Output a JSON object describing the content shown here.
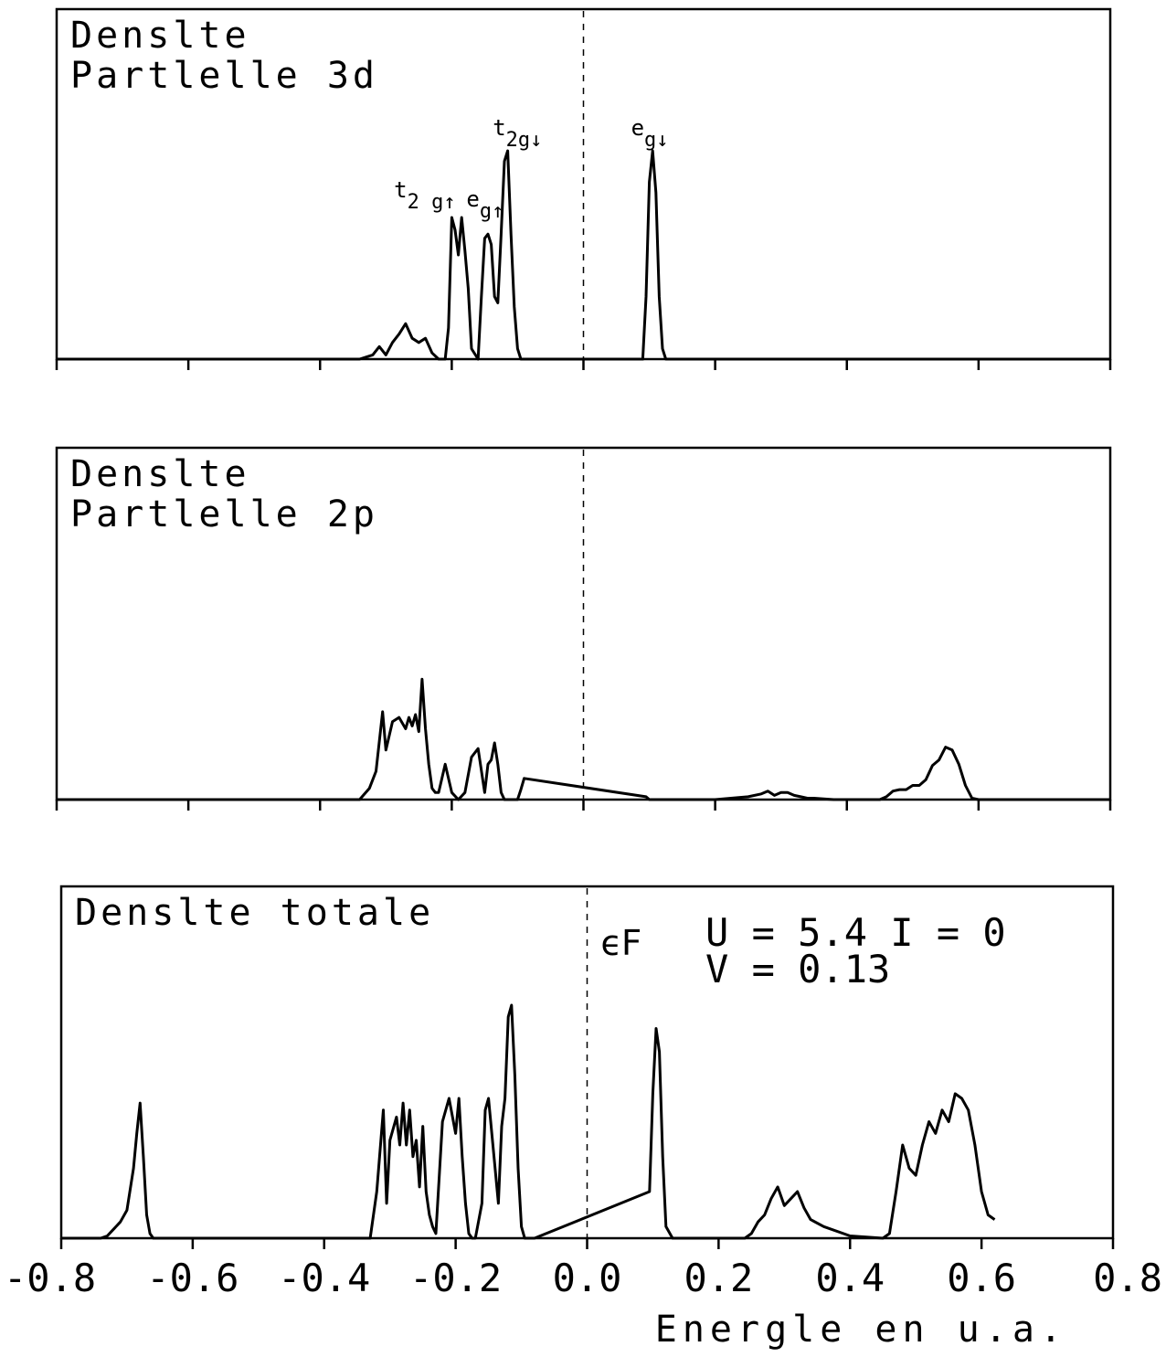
{
  "chart_data": [
    {
      "type": "line",
      "title_lines": [
        "Denslte",
        "Partlelle 3d"
      ],
      "xlim": [
        -0.8,
        0.8
      ],
      "fermi_level": 0.0,
      "annotations": [
        {
          "base": "t",
          "sub": "2 g",
          "arrow": "↑",
          "x": -0.26
        },
        {
          "base": "e",
          "sub": "g",
          "arrow": "↑",
          "x": -0.15
        },
        {
          "base": "t",
          "sub": "2g",
          "arrow": "↓",
          "x": -0.11
        },
        {
          "base": "e",
          "sub": "g",
          "arrow": "↓",
          "x": 0.1
        }
      ],
      "series": [
        {
          "x": [
            -0.8,
            -0.34,
            -0.32,
            -0.31,
            -0.3,
            -0.29,
            -0.28,
            -0.27,
            -0.26,
            -0.25,
            -0.24,
            -0.23,
            -0.22,
            -0.21,
            -0.205,
            -0.2,
            -0.195,
            -0.19,
            -0.185,
            -0.18,
            -0.175,
            -0.17,
            -0.16,
            -0.155,
            -0.15,
            -0.145,
            -0.14,
            -0.135,
            -0.13,
            -0.125,
            -0.12,
            -0.115,
            -0.11,
            -0.105,
            -0.1,
            -0.095,
            -0.09,
            -0.08,
            0.09,
            0.095,
            0.1,
            0.105,
            0.11,
            0.115,
            0.12,
            0.125,
            0.8
          ],
          "y": [
            0,
            0,
            0.02,
            0.06,
            0.02,
            0.08,
            0.12,
            0.17,
            0.1,
            0.08,
            0.1,
            0.03,
            0,
            0,
            0.15,
            0.68,
            0.62,
            0.5,
            0.68,
            0.52,
            0.34,
            0.05,
            0,
            0.3,
            0.58,
            0.6,
            0.55,
            0.3,
            0.27,
            0.6,
            0.95,
            1.0,
            0.6,
            0.25,
            0.05,
            0,
            0,
            0,
            0,
            0.3,
            0.85,
            1.0,
            0.8,
            0.3,
            0.05,
            0,
            0
          ]
        }
      ]
    },
    {
      "type": "line",
      "title_lines": [
        "Denslte",
        "Partlelle 2p"
      ],
      "xlim": [
        -0.8,
        0.8
      ],
      "fermi_level": 0.0,
      "series": [
        {
          "x": [
            -0.8,
            -0.34,
            -0.325,
            -0.315,
            -0.305,
            -0.3,
            -0.29,
            -0.28,
            -0.27,
            -0.265,
            -0.26,
            -0.255,
            -0.25,
            -0.245,
            -0.24,
            -0.235,
            -0.23,
            -0.225,
            -0.22,
            -0.21,
            -0.2,
            -0.19,
            -0.18,
            -0.17,
            -0.16,
            -0.15,
            -0.145,
            -0.14,
            -0.135,
            -0.13,
            -0.125,
            -0.12,
            -0.115,
            -0.11,
            -0.1,
            -0.095,
            -0.09,
            0.095,
            0.1,
            0.105,
            0.11,
            0.12,
            0.2,
            0.25,
            0.27,
            0.28,
            0.29,
            0.3,
            0.31,
            0.32,
            0.33,
            0.34,
            0.35,
            0.38,
            0.42,
            0.45,
            0.46,
            0.47,
            0.48,
            0.49,
            0.5,
            0.51,
            0.52,
            0.53,
            0.54,
            0.55,
            0.56,
            0.57,
            0.58,
            0.59,
            0.6,
            0.62,
            0.8
          ],
          "y": [
            0,
            0,
            0.08,
            0.2,
            0.62,
            0.35,
            0.55,
            0.58,
            0.5,
            0.58,
            0.52,
            0.6,
            0.48,
            0.85,
            0.5,
            0.25,
            0.08,
            0.05,
            0.05,
            0.25,
            0.05,
            0,
            0.05,
            0.3,
            0.36,
            0.05,
            0.25,
            0.28,
            0.4,
            0.25,
            0.05,
            0,
            0,
            0,
            0,
            0.07,
            0.15,
            0.02,
            0,
            0,
            0,
            0,
            0,
            0.02,
            0.04,
            0.06,
            0.03,
            0.05,
            0.05,
            0.03,
            0.02,
            0.01,
            0.01,
            0,
            0,
            0,
            0.02,
            0.06,
            0.07,
            0.07,
            0.1,
            0.1,
            0.14,
            0.24,
            0.28,
            0.37,
            0.35,
            0.25,
            0.1,
            0.01,
            0,
            0,
            0
          ]
        }
      ]
    },
    {
      "type": "line",
      "title_lines": [
        "Denslte totale"
      ],
      "xlim": [
        -0.8,
        0.8
      ],
      "xticks": [
        "-0.8",
        "-0.6",
        "-0.4",
        "-0.2",
        "0.0",
        "0.2",
        "0.4",
        "0.6",
        "0.8"
      ],
      "xlabel": "Energle en u.a.",
      "fermi_level": 0.0,
      "fermi_label": "ϵF",
      "params": {
        "line1": "U = 5.4  I = 0",
        "line2": "V = 0.13"
      },
      "series": [
        {
          "x": [
            -0.8,
            -0.74,
            -0.73,
            -0.72,
            -0.71,
            -0.7,
            -0.69,
            -0.685,
            -0.68,
            -0.675,
            -0.67,
            -0.665,
            -0.66,
            -0.33,
            -0.32,
            -0.31,
            -0.305,
            -0.3,
            -0.29,
            -0.285,
            -0.28,
            -0.275,
            -0.27,
            -0.265,
            -0.26,
            -0.255,
            -0.25,
            -0.245,
            -0.24,
            -0.235,
            -0.23,
            -0.22,
            -0.21,
            -0.2,
            -0.195,
            -0.19,
            -0.185,
            -0.18,
            -0.175,
            -0.17,
            -0.16,
            -0.155,
            -0.15,
            -0.14,
            -0.135,
            -0.13,
            -0.125,
            -0.12,
            -0.115,
            -0.11,
            -0.105,
            -0.1,
            -0.095,
            -0.09,
            -0.08,
            0.095,
            0.1,
            0.105,
            0.11,
            0.115,
            0.12,
            0.13,
            0.24,
            0.25,
            0.26,
            0.27,
            0.28,
            0.29,
            0.3,
            0.31,
            0.32,
            0.33,
            0.34,
            0.36,
            0.4,
            0.45,
            0.46,
            0.47,
            0.48,
            0.49,
            0.5,
            0.51,
            0.52,
            0.53,
            0.54,
            0.55,
            0.56,
            0.57,
            0.58,
            0.59,
            0.6,
            0.61,
            0.62
          ],
          "y": [
            0,
            0,
            0.01,
            0.04,
            0.07,
            0.12,
            0.3,
            0.45,
            0.58,
            0.35,
            0.1,
            0.02,
            0,
            0,
            0.2,
            0.55,
            0.15,
            0.42,
            0.52,
            0.4,
            0.58,
            0.4,
            0.55,
            0.35,
            0.42,
            0.22,
            0.48,
            0.2,
            0.1,
            0.05,
            0.02,
            0.5,
            0.6,
            0.45,
            0.6,
            0.35,
            0.15,
            0.02,
            0,
            0,
            0.15,
            0.55,
            0.6,
            0.3,
            0.15,
            0.48,
            0.6,
            0.95,
            1.0,
            0.7,
            0.3,
            0.05,
            0,
            0,
            0,
            0.2,
            0.62,
            0.9,
            0.8,
            0.35,
            0.05,
            0,
            0,
            0.02,
            0.07,
            0.1,
            0.17,
            0.22,
            0.14,
            0.17,
            0.2,
            0.13,
            0.08,
            0.05,
            0.01,
            0,
            0.02,
            0.2,
            0.4,
            0.3,
            0.27,
            0.4,
            0.5,
            0.45,
            0.55,
            0.5,
            0.62,
            0.6,
            0.55,
            0.4,
            0.2,
            0.1,
            0.08
          ]
        }
      ]
    }
  ]
}
